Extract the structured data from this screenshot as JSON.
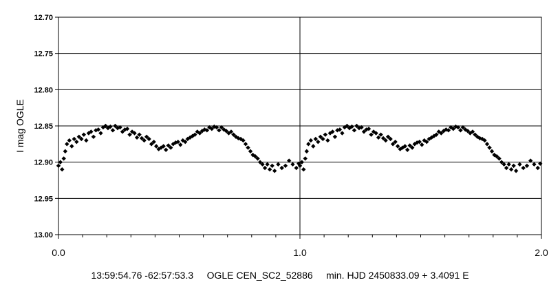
{
  "chart_data": {
    "type": "scatter",
    "title": "",
    "xlabel": "",
    "ylabel": "I mag OGLE",
    "xlim": [
      0.0,
      2.0
    ],
    "ylim": [
      12.7,
      13.0
    ],
    "y_inverted": true,
    "x_ticks": [
      "0.0",
      "1.0",
      "2.0"
    ],
    "y_ticks": [
      "12.70",
      "12.75",
      "12.80",
      "12.85",
      "12.90",
      "12.95",
      "13.00"
    ],
    "grid": "horizontal lines at each y tick; vertical line at x = 1.0",
    "marker": "black diamond",
    "phased": true,
    "series": [
      {
        "values_phase_mag": [
          [
            0.0,
            12.905
          ],
          [
            0.008,
            12.9
          ],
          [
            0.015,
            12.91
          ],
          [
            0.022,
            12.895
          ],
          [
            0.028,
            12.885
          ],
          [
            0.035,
            12.875
          ],
          [
            0.045,
            12.87
          ],
          [
            0.055,
            12.878
          ],
          [
            0.065,
            12.868
          ],
          [
            0.075,
            12.872
          ],
          [
            0.085,
            12.865
          ],
          [
            0.095,
            12.868
          ],
          [
            0.105,
            12.862
          ],
          [
            0.115,
            12.87
          ],
          [
            0.125,
            12.86
          ],
          [
            0.135,
            12.858
          ],
          [
            0.145,
            12.865
          ],
          [
            0.155,
            12.856
          ],
          [
            0.165,
            12.855
          ],
          [
            0.175,
            12.86
          ],
          [
            0.185,
            12.852
          ],
          [
            0.195,
            12.85
          ],
          [
            0.205,
            12.853
          ],
          [
            0.215,
            12.851
          ],
          [
            0.225,
            12.856
          ],
          [
            0.235,
            12.85
          ],
          [
            0.245,
            12.853
          ],
          [
            0.255,
            12.852
          ],
          [
            0.265,
            12.858
          ],
          [
            0.275,
            12.855
          ],
          [
            0.285,
            12.854
          ],
          [
            0.295,
            12.862
          ],
          [
            0.305,
            12.858
          ],
          [
            0.315,
            12.86
          ],
          [
            0.325,
            12.866
          ],
          [
            0.335,
            12.862
          ],
          [
            0.345,
            12.867
          ],
          [
            0.355,
            12.87
          ],
          [
            0.365,
            12.865
          ],
          [
            0.375,
            12.868
          ],
          [
            0.385,
            12.875
          ],
          [
            0.395,
            12.872
          ],
          [
            0.405,
            12.878
          ],
          [
            0.415,
            12.882
          ],
          [
            0.425,
            12.88
          ],
          [
            0.435,
            12.878
          ],
          [
            0.445,
            12.883
          ],
          [
            0.455,
            12.877
          ],
          [
            0.465,
            12.88
          ],
          [
            0.475,
            12.875
          ],
          [
            0.485,
            12.873
          ],
          [
            0.495,
            12.872
          ],
          [
            0.505,
            12.876
          ],
          [
            0.515,
            12.87
          ],
          [
            0.525,
            12.872
          ],
          [
            0.535,
            12.868
          ],
          [
            0.545,
            12.866
          ],
          [
            0.555,
            12.864
          ],
          [
            0.565,
            12.862
          ],
          [
            0.575,
            12.858
          ],
          [
            0.585,
            12.86
          ],
          [
            0.595,
            12.857
          ],
          [
            0.605,
            12.855
          ],
          [
            0.615,
            12.856
          ],
          [
            0.625,
            12.852
          ],
          [
            0.635,
            12.854
          ],
          [
            0.645,
            12.851
          ],
          [
            0.655,
            12.852
          ],
          [
            0.665,
            12.856
          ],
          [
            0.675,
            12.852
          ],
          [
            0.685,
            12.855
          ],
          [
            0.695,
            12.857
          ],
          [
            0.705,
            12.86
          ],
          [
            0.715,
            12.858
          ],
          [
            0.725,
            12.862
          ],
          [
            0.735,
            12.865
          ],
          [
            0.745,
            12.867
          ],
          [
            0.755,
            12.868
          ],
          [
            0.765,
            12.87
          ],
          [
            0.775,
            12.875
          ],
          [
            0.785,
            12.88
          ],
          [
            0.795,
            12.885
          ],
          [
            0.805,
            12.89
          ],
          [
            0.815,
            12.892
          ],
          [
            0.825,
            12.895
          ],
          [
            0.835,
            12.9
          ],
          [
            0.845,
            12.903
          ],
          [
            0.855,
            12.908
          ],
          [
            0.865,
            12.903
          ],
          [
            0.875,
            12.91
          ],
          [
            0.885,
            12.905
          ],
          [
            0.895,
            12.912
          ],
          [
            0.91,
            12.903
          ],
          [
            0.925,
            12.908
          ],
          [
            0.94,
            12.905
          ],
          [
            0.955,
            12.898
          ],
          [
            0.97,
            12.903
          ],
          [
            0.985,
            12.908
          ],
          [
            0.995,
            12.902
          ]
        ]
      }
    ]
  },
  "caption": {
    "coordinates": "13:59:54.76 -62:57:53.3",
    "star_id": "OGLE CEN_SC2_52886",
    "ephemeris": "min. HJD 2450833.09 + 3.4091 E"
  }
}
